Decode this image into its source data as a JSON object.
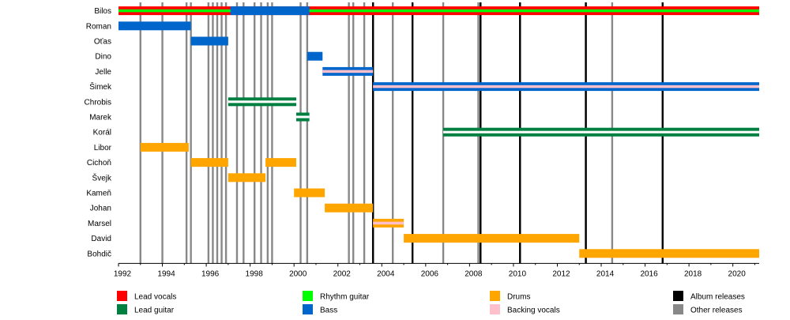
{
  "chart_data": {
    "type": "timeline",
    "x_range": [
      1992,
      2021.2
    ],
    "ticks": [
      1992,
      1994,
      1996,
      1998,
      2000,
      2002,
      2004,
      2006,
      2008,
      2010,
      2012,
      2014,
      2016,
      2018,
      2020
    ],
    "tick_labels": [
      "1992",
      "1994",
      "1996",
      "1998",
      "2000",
      "2002",
      "2004",
      "2006",
      "2008",
      "2010",
      "2012",
      "2014",
      "2016",
      "2018",
      "2020"
    ],
    "members": [
      "Bilos",
      "Roman",
      "Oťas",
      "Dino",
      "Jelle",
      "Šimek",
      "Chrobis",
      "Marek",
      "Korál",
      "Libor",
      "Cichoň",
      "Švejk",
      "Kameň",
      "Johan",
      "Marsel",
      "David",
      "Bohdič"
    ],
    "roles": {
      "lead_vocals": {
        "label": "Lead vocals",
        "color": "#ff0000"
      },
      "rhythm_guitar": {
        "label": "Rhythm guitar",
        "color": "#00ff00"
      },
      "drums": {
        "label": "Drums",
        "color": "#ffa500"
      },
      "album_releases": {
        "label": "Album releases",
        "color": "#000000"
      },
      "lead_guitar": {
        "label": "Lead guitar",
        "color": "#008040"
      },
      "bass": {
        "label": "Bass",
        "color": "#0066cc"
      },
      "backing_vocals": {
        "label": "Backing vocals",
        "color": "#ffc0cb"
      },
      "other_releases": {
        "label": "Other releases",
        "color": "#888888"
      }
    },
    "legend_order": [
      "lead_vocals",
      "lead_guitar",
      "rhythm_guitar",
      "bass",
      "drums",
      "backing_vocals",
      "album_releases",
      "other_releases"
    ],
    "bars": [
      {
        "member": 0,
        "start": 1992.0,
        "end": 2021.2,
        "roles": [
          "lead_vocals",
          "rhythm_guitar"
        ]
      },
      {
        "member": 0,
        "start": 1997.1,
        "end": 2000.7,
        "roles": [
          "bass"
        ]
      },
      {
        "member": 1,
        "start": 1992.0,
        "end": 1995.3,
        "roles": [
          "bass"
        ]
      },
      {
        "member": 2,
        "start": 1995.3,
        "end": 1997.0,
        "roles": [
          "bass"
        ]
      },
      {
        "member": 3,
        "start": 2000.6,
        "end": 2001.3,
        "roles": [
          "bass"
        ]
      },
      {
        "member": 4,
        "start": 2001.3,
        "end": 2003.6,
        "roles": [
          "bass",
          "backing_vocals"
        ]
      },
      {
        "member": 5,
        "start": 2003.6,
        "end": 2021.2,
        "roles": [
          "bass",
          "backing_vocals"
        ]
      },
      {
        "member": 6,
        "start": 1997.0,
        "end": 2000.1,
        "roles": [
          "lead_guitar"
        ]
      },
      {
        "member": 7,
        "start": 2000.1,
        "end": 2000.7,
        "roles": [
          "lead_guitar"
        ]
      },
      {
        "member": 8,
        "start": 2006.8,
        "end": 2021.2,
        "roles": [
          "lead_guitar"
        ]
      },
      {
        "member": 9,
        "start": 1993.0,
        "end": 1995.2,
        "roles": [
          "drums"
        ]
      },
      {
        "member": 10,
        "start": 1995.3,
        "end": 1997.0,
        "roles": [
          "drums"
        ]
      },
      {
        "member": 10,
        "start": 1998.7,
        "end": 2000.1,
        "roles": [
          "drums"
        ]
      },
      {
        "member": 11,
        "start": 1997.0,
        "end": 1998.7,
        "roles": [
          "drums"
        ]
      },
      {
        "member": 12,
        "start": 2000.0,
        "end": 2001.4,
        "roles": [
          "drums"
        ]
      },
      {
        "member": 13,
        "start": 2001.4,
        "end": 2003.6,
        "roles": [
          "drums"
        ]
      },
      {
        "member": 14,
        "start": 2003.6,
        "end": 2005.0,
        "roles": [
          "drums",
          "backing_vocals"
        ]
      },
      {
        "member": 15,
        "start": 2005.0,
        "end": 2013.0,
        "roles": [
          "drums"
        ]
      },
      {
        "member": 16,
        "start": 2013.0,
        "end": 2021.2,
        "roles": [
          "drums"
        ]
      }
    ],
    "album_releases": [
      2003.6,
      2005.4,
      2008.5,
      2010.3,
      2013.3,
      2016.8
    ],
    "other_releases": [
      1993.0,
      1994.0,
      1995.1,
      1995.3,
      1996.1,
      1996.3,
      1996.5,
      1996.7,
      1996.9,
      1997.4,
      1997.7,
      1998.2,
      1998.5,
      1998.8,
      1999.0,
      2000.3,
      2000.6,
      2002.5,
      2002.7,
      2003.2,
      2003.6,
      2004.5,
      2006.8,
      2008.4,
      2008.5,
      2010.3,
      2013.3,
      2014.5,
      2016.8
    ]
  }
}
